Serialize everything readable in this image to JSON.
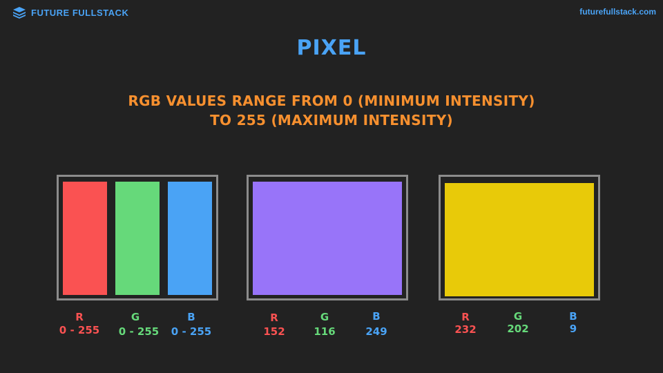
{
  "header": {
    "brand_name": "FUTURE FULLSTACK",
    "brand_icon": "layers-icon",
    "site_link": "futurefullstack.com"
  },
  "title": "PIXEL",
  "subtitle_line1": "RGB VALUES RANGE FROM 0 (MINIMUM INTENSITY)",
  "subtitle_line2": "TO 255 (MAXIMUM INTENSITY)",
  "colors": {
    "red": "#fa5252",
    "green": "#66d97a",
    "blue": "#4aa3f5",
    "purple": "#9874f9",
    "yellow": "#e8ca09",
    "orange": "#f7902f",
    "background": "#222222",
    "frame": "#8c8c8c"
  },
  "panels": [
    {
      "swatch_colors": [
        "#fa5252",
        "#66d97a",
        "#4aa3f5"
      ],
      "channels": [
        {
          "label": "R",
          "value": "0 - 255"
        },
        {
          "label": "G",
          "value": "0 - 255"
        },
        {
          "label": "B",
          "value": "0 - 255"
        }
      ]
    },
    {
      "swatch_colors": [
        "#9874f9"
      ],
      "channels": [
        {
          "label": "R",
          "value": "152"
        },
        {
          "label": "G",
          "value": "116"
        },
        {
          "label": "B",
          "value": "249"
        }
      ]
    },
    {
      "swatch_colors": [
        "#e8ca09"
      ],
      "channels": [
        {
          "label": "R",
          "value": "232"
        },
        {
          "label": "G",
          "value": "202"
        },
        {
          "label": "B",
          "value": "9"
        }
      ]
    }
  ]
}
